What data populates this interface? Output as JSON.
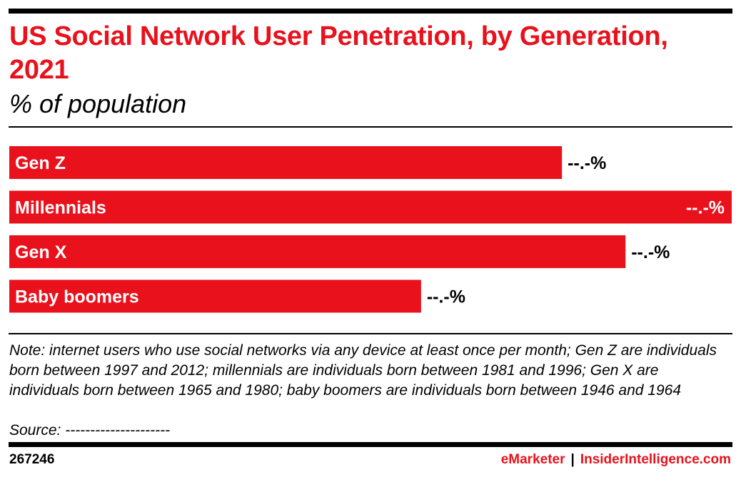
{
  "header": {
    "title": "US Social Network User Penetration, by Generation, 2021",
    "subtitle": "% of population"
  },
  "chart_data": {
    "type": "bar",
    "orientation": "horizontal",
    "categories": [
      "Gen Z",
      "Millennials",
      "Gen X",
      "Baby boomers"
    ],
    "values": [
      76.5,
      100,
      85.3,
      57.0
    ],
    "value_labels": [
      "--.-%",
      "--.-%",
      "--.-%",
      "--.-%"
    ],
    "xlim": [
      0,
      100
    ],
    "grid": false,
    "legend": "none",
    "bar_color": "#e8111c"
  },
  "footer": {
    "note": "Note: internet users who use social networks via any device at least once per month; Gen Z are individuals born between 1997 and 2012; millennials are individuals born between 1981 and 1996; Gen X are individuals born between 1965 and 1980; baby boomers are individuals born between 1946 and 1964",
    "source": "Source: ---------------------",
    "chart_id": "267246",
    "brand": "eMarketer",
    "separator": "|",
    "brand2": "InsiderIntelligence.com"
  },
  "colors": {
    "accent": "#e8111c",
    "text": "#000000"
  }
}
